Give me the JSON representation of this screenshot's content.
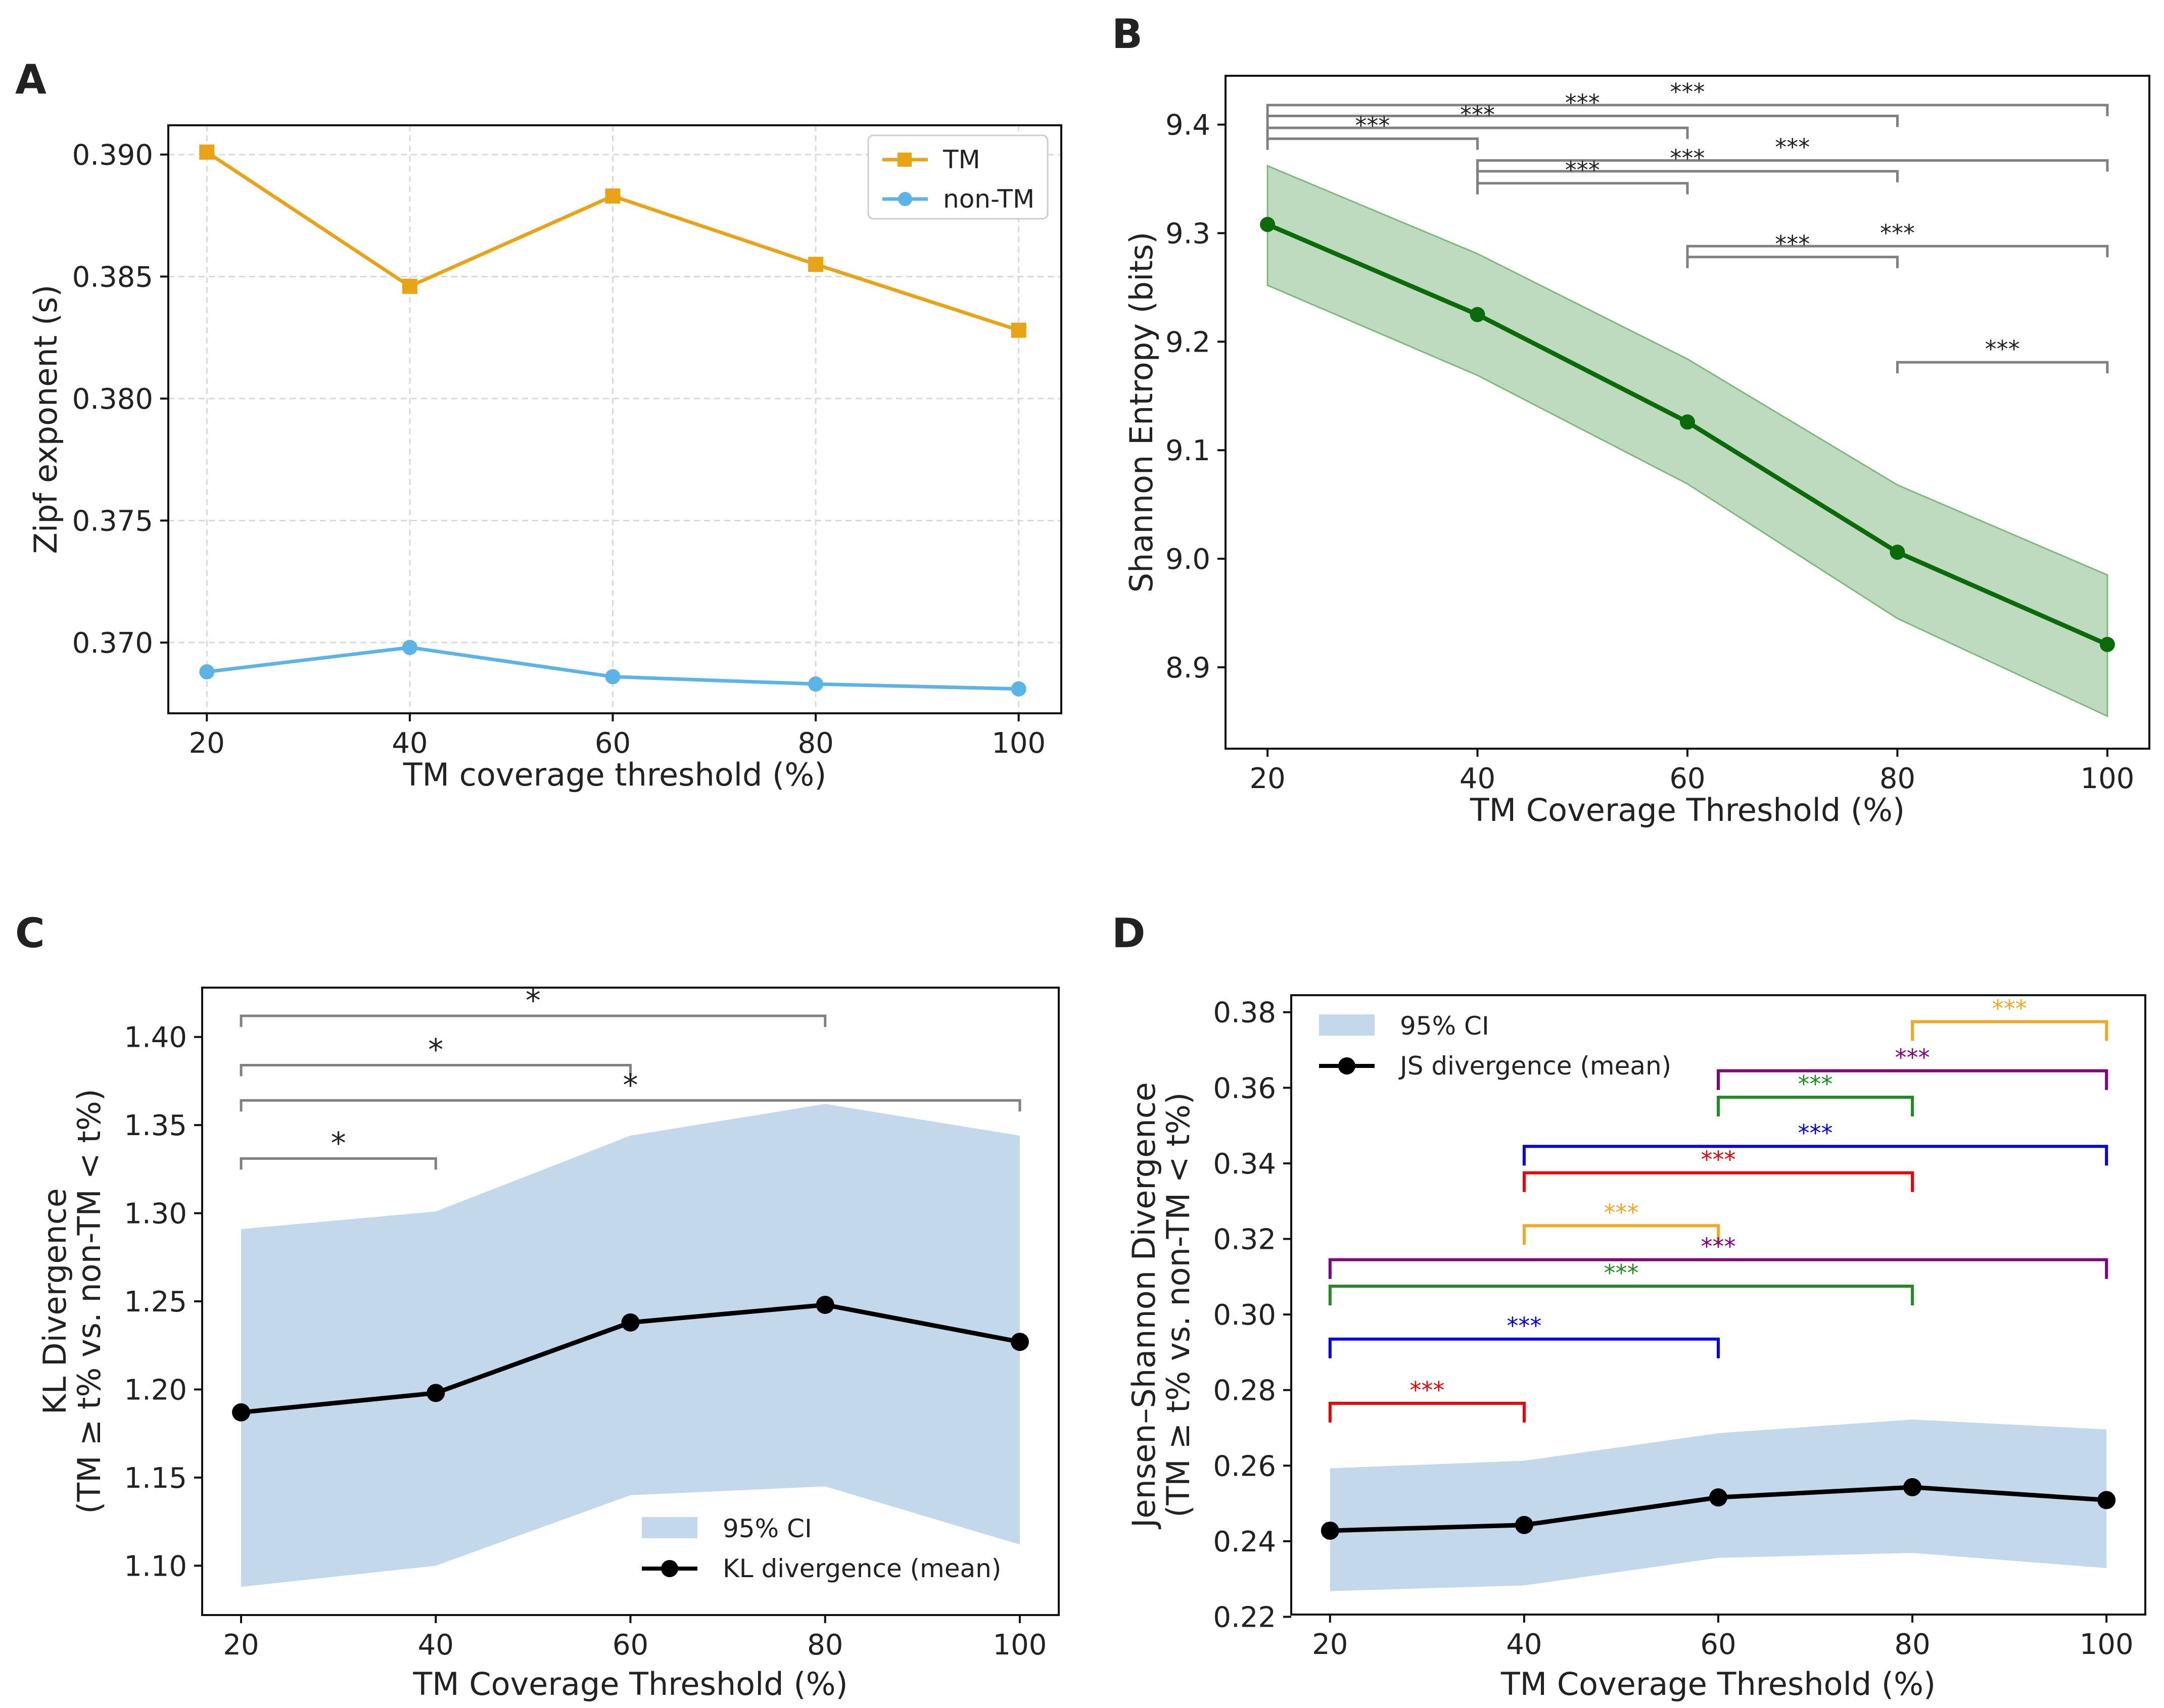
{
  "colors": {
    "tm": "#E8A317",
    "non_tm": "#5BB4E5",
    "entropy_line": "#0B6B0B",
    "entropy_band": "#A9CFA9",
    "ci_band": "#C3D9EB",
    "mean_line": "#000000",
    "bracket_gray": "#808080",
    "grid": "#D9D9D9"
  },
  "chart_data": [
    {
      "id": "A",
      "panel_label": "A",
      "type": "line",
      "title": "",
      "xlabel": "TM coverage threshold (%)",
      "ylabel": "Zipf exponent (s)",
      "x": [
        20,
        40,
        60,
        80,
        100
      ],
      "xticks": [
        "20",
        "40",
        "60",
        "80",
        "100"
      ],
      "yticks": [
        "0.370",
        "0.375",
        "0.380",
        "0.385",
        "0.390"
      ],
      "yticks_values": [
        0.37,
        0.375,
        0.38,
        0.385,
        0.39
      ],
      "xlim": [
        16.2,
        104.2
      ],
      "ylim": [
        0.3671,
        0.3912
      ],
      "grid": true,
      "legend_position": "top-right",
      "series": [
        {
          "name": "TM",
          "marker": "square",
          "values": [
            0.3901,
            0.3846,
            0.3883,
            0.3855,
            0.3828
          ]
        },
        {
          "name": "non-TM",
          "marker": "circle",
          "values": [
            0.3688,
            0.3698,
            0.3686,
            0.3683,
            0.3681
          ]
        }
      ]
    },
    {
      "id": "B",
      "panel_label": "B",
      "type": "line",
      "title": "",
      "xlabel": "TM Coverage Threshold (%)",
      "ylabel": "Shannon Entropy (bits)",
      "x": [
        20,
        40,
        60,
        80,
        100
      ],
      "xticks": [
        "20",
        "40",
        "60",
        "80",
        "100"
      ],
      "yticks": [
        "8.9",
        "9.0",
        "9.1",
        "9.2",
        "9.3",
        "9.4"
      ],
      "yticks_values": [
        8.9,
        9.0,
        9.1,
        9.2,
        9.3,
        9.4
      ],
      "xlim": [
        16,
        104
      ],
      "ylim": [
        8.825,
        9.445
      ],
      "grid": false,
      "series": [
        {
          "name": "Shannon entropy",
          "values": [
            9.308,
            9.225,
            9.126,
            9.006,
            8.921
          ],
          "ci_lower": [
            9.252,
            9.169,
            9.069,
            8.945,
            8.855
          ],
          "ci_upper": [
            9.362,
            9.281,
            9.184,
            9.068,
            8.985
          ]
        }
      ],
      "significance": [
        {
          "from": 20,
          "to": 100,
          "y": 9.418,
          "label": "***",
          "label_x": 60
        },
        {
          "from": 20,
          "to": 80,
          "y": 9.408,
          "label": "***",
          "label_x": 50
        },
        {
          "from": 20,
          "to": 60,
          "y": 9.397,
          "label": "***",
          "label_x": 40
        },
        {
          "from": 20,
          "to": 40,
          "y": 9.387,
          "label": "***",
          "label_x": 30
        },
        {
          "from": 40,
          "to": 100,
          "y": 9.367,
          "label": "***",
          "label_x": 70
        },
        {
          "from": 40,
          "to": 80,
          "y": 9.357,
          "label": "***",
          "label_x": 60
        },
        {
          "from": 40,
          "to": 60,
          "y": 9.346,
          "label": "***",
          "label_x": 50
        },
        {
          "from": 60,
          "to": 100,
          "y": 9.288,
          "label": "***",
          "label_x": 80
        },
        {
          "from": 60,
          "to": 80,
          "y": 9.278,
          "label": "***",
          "label_x": 70
        },
        {
          "from": 80,
          "to": 100,
          "y": 9.181,
          "label": "***",
          "label_x": 90
        }
      ]
    },
    {
      "id": "C",
      "panel_label": "C",
      "type": "line",
      "title": "",
      "xlabel": "TM Coverage Threshold (%)",
      "ylabel_lines": [
        "KL Divergence",
        "(TM ≥ t% vs. non-TM < t%)"
      ],
      "x": [
        20,
        40,
        60,
        80,
        100
      ],
      "xticks": [
        "20",
        "40",
        "60",
        "80",
        "100"
      ],
      "yticks": [
        "1.10",
        "1.15",
        "1.20",
        "1.25",
        "1.30",
        "1.35",
        "1.40"
      ],
      "yticks_values": [
        1.1,
        1.15,
        1.2,
        1.25,
        1.3,
        1.35,
        1.4
      ],
      "xlim": [
        16,
        104
      ],
      "ylim": [
        1.072,
        1.428
      ],
      "grid": false,
      "legend_position": "bottom-right",
      "ci_label": "95% CI",
      "series": [
        {
          "name": "KL divergence (mean)",
          "values": [
            1.187,
            1.198,
            1.238,
            1.248,
            1.227
          ],
          "ci_lower": [
            1.088,
            1.1,
            1.14,
            1.145,
            1.112
          ],
          "ci_upper": [
            1.291,
            1.301,
            1.344,
            1.362,
            1.344
          ]
        }
      ],
      "significance": [
        {
          "from": 20,
          "to": 80,
          "y": 1.412,
          "label": "*",
          "label_x": 50
        },
        {
          "from": 20,
          "to": 60,
          "y": 1.384,
          "label": "*",
          "label_x": 40
        },
        {
          "from": 20,
          "to": 100,
          "y": 1.364,
          "label": "*",
          "label_x": 60
        },
        {
          "from": 20,
          "to": 40,
          "y": 1.331,
          "label": "*",
          "label_x": 30
        }
      ]
    },
    {
      "id": "D",
      "panel_label": "D",
      "type": "line",
      "title": "",
      "xlabel": "TM Coverage Threshold (%)",
      "ylabel_lines": [
        "Jensen–Shannon Divergence",
        "(TM ≥ t% vs. non-TM < t%)"
      ],
      "x": [
        20,
        40,
        60,
        80,
        100
      ],
      "xticks": [
        "20",
        "40",
        "60",
        "80",
        "100"
      ],
      "yticks": [
        "0.22",
        "0.24",
        "0.26",
        "0.28",
        "0.30",
        "0.32",
        "0.34",
        "0.36",
        "0.38"
      ],
      "yticks_values": [
        0.22,
        0.24,
        0.26,
        0.28,
        0.3,
        0.32,
        0.34,
        0.36,
        0.38
      ],
      "xlim": [
        16,
        104
      ],
      "ylim": [
        0.2206,
        0.3845
      ],
      "grid": false,
      "legend_position": "top-left",
      "ci_label": "95% CI",
      "series": [
        {
          "name": "JS divergence (mean)",
          "values": [
            0.2428,
            0.2443,
            0.2516,
            0.2543,
            0.2509
          ],
          "ci_lower": [
            0.2268,
            0.2283,
            0.2356,
            0.2369,
            0.2329
          ],
          "ci_upper": [
            0.2593,
            0.2613,
            0.2686,
            0.2722,
            0.2696
          ]
        }
      ],
      "significance": [
        {
          "from": 80,
          "to": 100,
          "y": 0.3775,
          "label": "***",
          "label_x": 90,
          "color": "#F5A623"
        },
        {
          "from": 60,
          "to": 100,
          "y": 0.3645,
          "label": "***",
          "label_x": 80,
          "color": "#800080"
        },
        {
          "from": 60,
          "to": 80,
          "y": 0.3575,
          "label": "***",
          "label_x": 70,
          "color": "#228B22"
        },
        {
          "from": 40,
          "to": 100,
          "y": 0.3445,
          "label": "***",
          "label_x": 70,
          "color": "#0000EE"
        },
        {
          "from": 40,
          "to": 80,
          "y": 0.3375,
          "label": "***",
          "label_x": 60,
          "color": "#EE0000"
        },
        {
          "from": 40,
          "to": 60,
          "y": 0.3235,
          "label": "***",
          "label_x": 50,
          "color": "#F5A623"
        },
        {
          "from": 20,
          "to": 100,
          "y": 0.3145,
          "label": "***",
          "label_x": 60,
          "color": "#800080"
        },
        {
          "from": 20,
          "to": 80,
          "y": 0.3075,
          "label": "***",
          "label_x": 50,
          "color": "#228B22"
        },
        {
          "from": 20,
          "to": 60,
          "y": 0.2935,
          "label": "***",
          "label_x": 40,
          "color": "#0000EE"
        },
        {
          "from": 20,
          "to": 40,
          "y": 0.2765,
          "label": "***",
          "label_x": 30,
          "color": "#EE0000"
        }
      ]
    }
  ]
}
